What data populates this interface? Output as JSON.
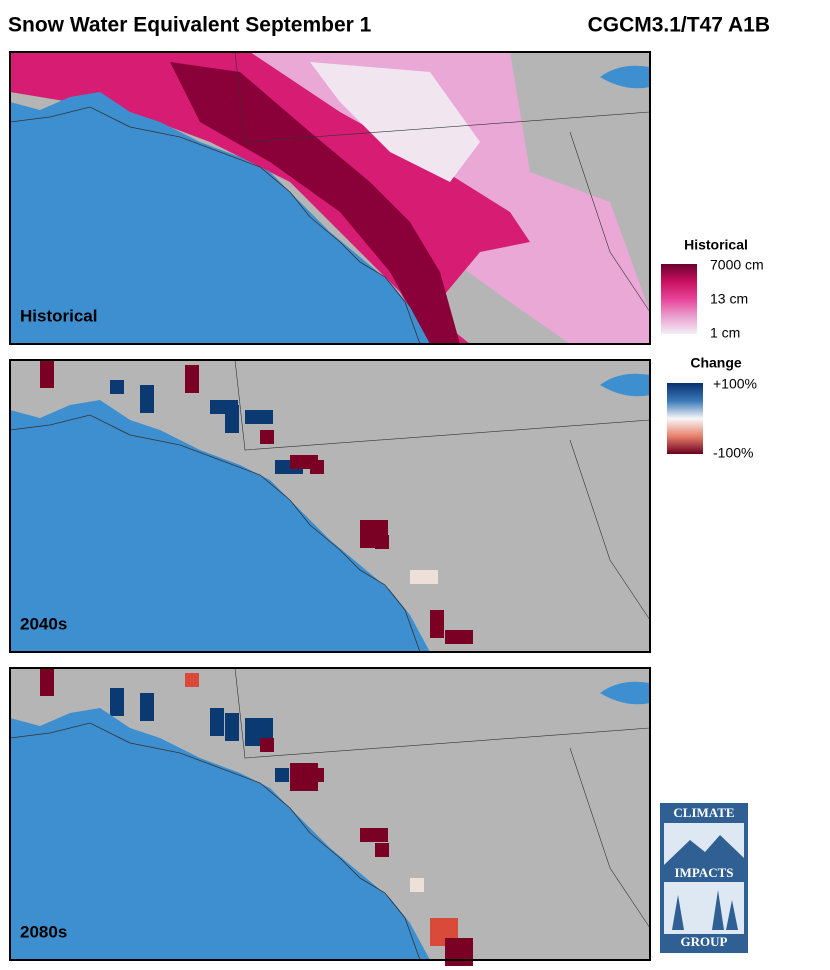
{
  "header": {
    "title": "Snow Water Equivalent September 1",
    "model": "CGCM3.1/T47 A1B"
  },
  "panels": [
    {
      "label": "Historical"
    },
    {
      "label": "2040s"
    },
    {
      "label": "2080s"
    }
  ],
  "legends": {
    "historical": {
      "title": "Historical",
      "labels": [
        "7000 cm",
        "13 cm",
        "1 cm"
      ]
    },
    "change": {
      "title": "Change",
      "labels": [
        "+100%",
        "-100%"
      ]
    }
  },
  "logo": {
    "lines": [
      "CLIMATE",
      "IMPACTS",
      "GROUP"
    ]
  }
}
